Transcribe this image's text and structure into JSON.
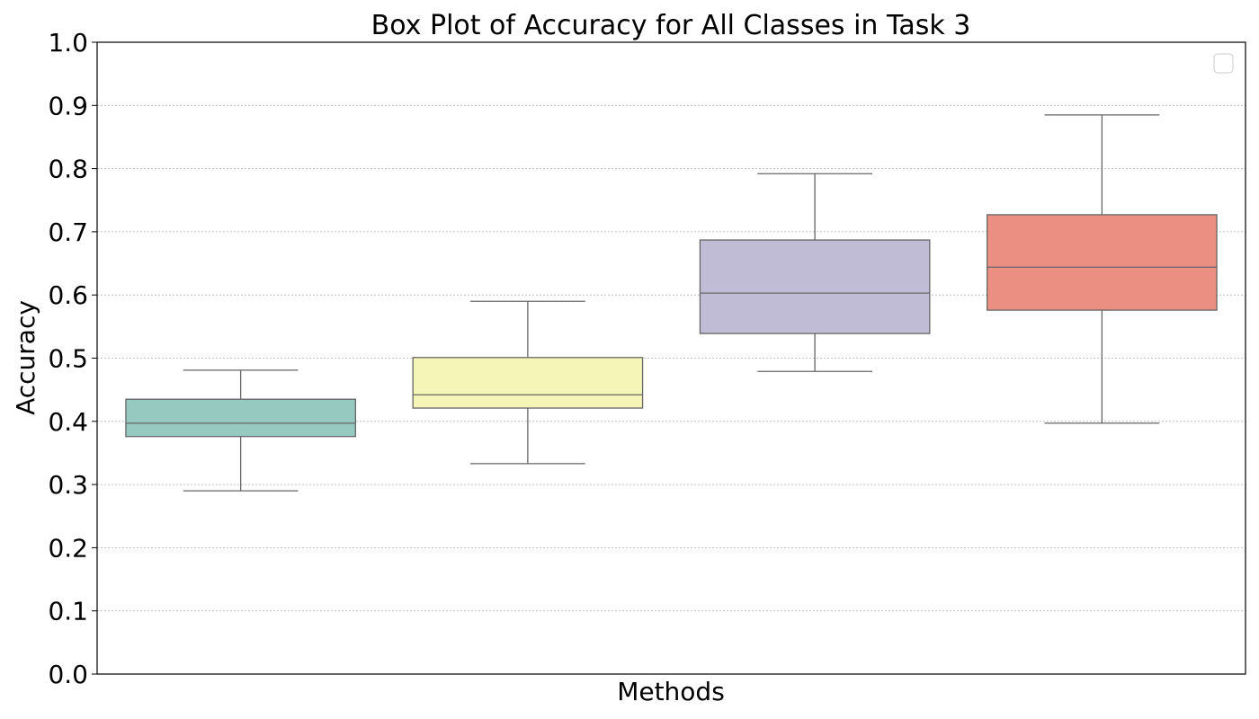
{
  "chart_data": {
    "type": "box",
    "title": "Box Plot of Accuracy for All Classes in Task 3",
    "xlabel": "Methods",
    "ylabel": "Accuracy",
    "ylim": [
      0.0,
      1.0
    ],
    "yticks": [
      "0.0",
      "0.1",
      "0.2",
      "0.3",
      "0.4",
      "0.5",
      "0.6",
      "0.7",
      "0.8",
      "0.9",
      "1.0"
    ],
    "grid": "horizontal dotted",
    "legend": "top-right (empty)",
    "boxes": [
      {
        "color": "#96c9bf",
        "whisker_low": 0.29,
        "q1": 0.376,
        "median": 0.397,
        "q3": 0.435,
        "whisker_high": 0.481
      },
      {
        "color": "#f6f5b8",
        "whisker_low": 0.333,
        "q1": 0.421,
        "median": 0.442,
        "q3": 0.501,
        "whisker_high": 0.59
      },
      {
        "color": "#c1bcd5",
        "whisker_low": 0.479,
        "q1": 0.539,
        "median": 0.603,
        "q3": 0.687,
        "whisker_high": 0.792
      },
      {
        "color": "#ea8f82",
        "whisker_low": 0.397,
        "q1": 0.576,
        "median": 0.644,
        "q3": 0.727,
        "whisker_high": 0.885
      }
    ]
  }
}
